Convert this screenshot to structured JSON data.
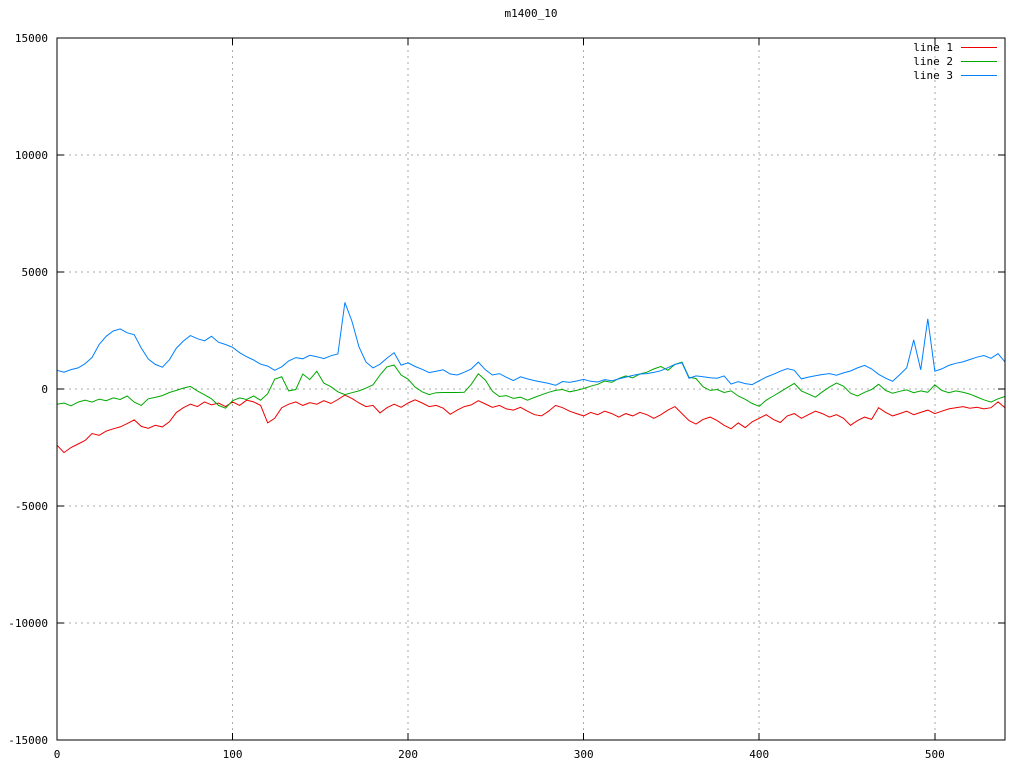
{
  "title": "m1400_10",
  "colors": {
    "background": "#ffffff",
    "plot_border": "#000000",
    "grid": "#aaaaaa",
    "text": "#000000",
    "line1": "#ee0000",
    "line2": "#00a800",
    "line3": "#0080ff"
  },
  "legend": {
    "position": "top-right",
    "entries": [
      {
        "label": "line 1",
        "color": "#ee0000"
      },
      {
        "label": "line 2",
        "color": "#00a800"
      },
      {
        "label": "line 3",
        "color": "#0080ff"
      }
    ]
  },
  "chart_data": {
    "type": "line",
    "title": "m1400_10",
    "xlabel": "",
    "ylabel": "",
    "xlim": [
      0,
      540
    ],
    "ylim": [
      -15000,
      15000
    ],
    "xticks": [
      0,
      100,
      200,
      300,
      400,
      500
    ],
    "yticks": [
      -15000,
      -10000,
      -5000,
      0,
      5000,
      10000,
      15000
    ],
    "grid": true,
    "legend_position": "top-right",
    "x": [
      0,
      4,
      8,
      12,
      16,
      20,
      24,
      28,
      32,
      36,
      40,
      44,
      48,
      52,
      56,
      60,
      64,
      68,
      72,
      76,
      80,
      84,
      88,
      92,
      96,
      100,
      104,
      108,
      112,
      116,
      120,
      124,
      128,
      132,
      136,
      140,
      144,
      148,
      152,
      156,
      160,
      164,
      168,
      172,
      176,
      180,
      184,
      188,
      192,
      196,
      200,
      204,
      208,
      212,
      216,
      220,
      224,
      228,
      232,
      236,
      240,
      244,
      248,
      252,
      256,
      260,
      264,
      268,
      272,
      276,
      280,
      284,
      288,
      292,
      296,
      300,
      304,
      308,
      312,
      316,
      320,
      324,
      328,
      332,
      336,
      340,
      344,
      348,
      352,
      356,
      360,
      364,
      368,
      372,
      376,
      380,
      384,
      388,
      392,
      396,
      400,
      404,
      408,
      412,
      416,
      420,
      424,
      428,
      432,
      436,
      440,
      444,
      448,
      452,
      456,
      460,
      464,
      468,
      472,
      476,
      480,
      484,
      488,
      492,
      496,
      500,
      504,
      508,
      512,
      516,
      520,
      524,
      528,
      532,
      536,
      540
    ],
    "series": [
      {
        "name": "line 1",
        "color": "#ee0000",
        "values": [
          -2400,
          -2720,
          -2500,
          -2350,
          -2200,
          -1900,
          -1980,
          -1800,
          -1700,
          -1620,
          -1480,
          -1320,
          -1600,
          -1680,
          -1550,
          -1620,
          -1400,
          -1000,
          -800,
          -650,
          -750,
          -550,
          -680,
          -600,
          -750,
          -550,
          -700,
          -480,
          -550,
          -700,
          -1450,
          -1250,
          -800,
          -650,
          -550,
          -700,
          -580,
          -650,
          -500,
          -620,
          -450,
          -260,
          -400,
          -600,
          -750,
          -700,
          -1020,
          -800,
          -650,
          -780,
          -600,
          -460,
          -600,
          -750,
          -700,
          -820,
          -1080,
          -900,
          -750,
          -680,
          -500,
          -640,
          -780,
          -700,
          -850,
          -900,
          -780,
          -950,
          -1100,
          -1150,
          -950,
          -700,
          -800,
          -950,
          -1050,
          -1150,
          -1000,
          -1100,
          -950,
          -1050,
          -1200,
          -1050,
          -1150,
          -1000,
          -1100,
          -1250,
          -1100,
          -900,
          -750,
          -1050,
          -1350,
          -1500,
          -1300,
          -1200,
          -1350,
          -1550,
          -1700,
          -1450,
          -1650,
          -1400,
          -1250,
          -1100,
          -1300,
          -1430,
          -1150,
          -1050,
          -1250,
          -1100,
          -950,
          -1050,
          -1200,
          -1100,
          -1250,
          -1550,
          -1350,
          -1200,
          -1300,
          -800,
          -1000,
          -1150,
          -1050,
          -950,
          -1100,
          -1000,
          -900,
          -1050,
          -950,
          -850,
          -800,
          -750,
          -820,
          -780,
          -850,
          -800,
          -550,
          -800
        ]
      },
      {
        "name": "line 2",
        "color": "#00a800",
        "values": [
          -650,
          -600,
          -720,
          -560,
          -480,
          -560,
          -430,
          -500,
          -380,
          -450,
          -300,
          -560,
          -700,
          -420,
          -360,
          -280,
          -150,
          -60,
          40,
          110,
          -80,
          -250,
          -420,
          -700,
          -820,
          -500,
          -380,
          -450,
          -300,
          -480,
          -200,
          420,
          520,
          -80,
          -20,
          640,
          400,
          760,
          250,
          100,
          -120,
          -240,
          -160,
          -80,
          40,
          180,
          600,
          950,
          1020,
          600,
          420,
          80,
          -120,
          -240,
          -160,
          -150,
          -150,
          -150,
          -140,
          200,
          650,
          380,
          -100,
          -320,
          -280,
          -400,
          -350,
          -480,
          -360,
          -250,
          -140,
          -60,
          -20,
          -120,
          -60,
          20,
          120,
          200,
          340,
          280,
          450,
          560,
          480,
          640,
          720,
          860,
          960,
          800,
          1050,
          1150,
          500,
          450,
          100,
          -60,
          -20,
          -150,
          -80,
          -300,
          -440,
          -620,
          -740,
          -480,
          -300,
          -120,
          60,
          240,
          -80,
          -220,
          -350,
          -120,
          80,
          250,
          120,
          -180,
          -300,
          -140,
          -20,
          200,
          -60,
          -180,
          -100,
          -40,
          -160,
          -80,
          -140,
          180,
          -60,
          -160,
          -80,
          -140,
          -220,
          -340,
          -460,
          -560,
          -420,
          -320
        ]
      },
      {
        "name": "line 3",
        "color": "#0080ff",
        "values": [
          800,
          720,
          830,
          900,
          1080,
          1350,
          1900,
          2250,
          2480,
          2570,
          2400,
          2320,
          1750,
          1280,
          1050,
          930,
          1250,
          1750,
          2050,
          2280,
          2150,
          2060,
          2250,
          2000,
          1900,
          1780,
          1550,
          1380,
          1240,
          1060,
          980,
          800,
          950,
          1200,
          1340,
          1290,
          1440,
          1380,
          1300,
          1420,
          1500,
          3700,
          2900,
          1800,
          1150,
          900,
          1060,
          1320,
          1550,
          1020,
          1120,
          960,
          840,
          700,
          760,
          820,
          640,
          600,
          720,
          860,
          1150,
          820,
          600,
          660,
          500,
          360,
          520,
          430,
          360,
          300,
          240,
          160,
          320,
          280,
          340,
          410,
          330,
          300,
          400,
          350,
          430,
          510,
          580,
          640,
          660,
          710,
          780,
          910,
          1050,
          1120,
          460,
          560,
          520,
          480,
          460,
          560,
          210,
          310,
          230,
          190,
          350,
          510,
          630,
          760,
          870,
          800,
          430,
          510,
          570,
          620,
          660,
          590,
          690,
          770,
          900,
          1010,
          860,
          630,
          460,
          330,
          610,
          900,
          2100,
          820,
          3000,
          760,
          860,
          1010,
          1100,
          1160,
          1260,
          1360,
          1430,
          1310,
          1510,
          1160
        ]
      }
    ]
  }
}
